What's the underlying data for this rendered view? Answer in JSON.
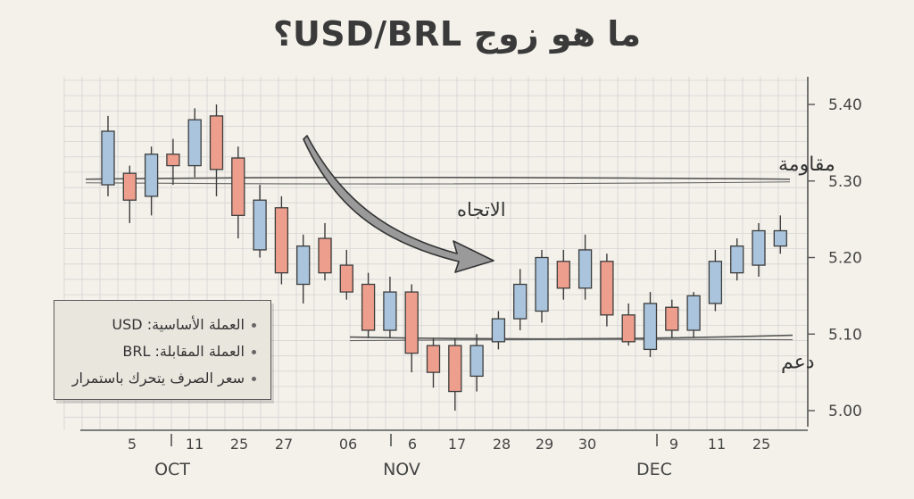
{
  "title": "ما هو زوج USD/BRL؟",
  "legend": {
    "items": [
      "العملة الأساسية: USD",
      "العملة المقابلة: BRL",
      "سعر الصرف يتحرك باستمرار"
    ]
  },
  "colors": {
    "up": "#a9c4dc",
    "down": "#ee9e8c",
    "grid": "#d4d4d4",
    "ink": "#444444",
    "background": "#f3f1ea"
  },
  "chart_data": {
    "type": "candlestick",
    "y_ticks": [
      "5.00",
      "5.10",
      "5.20",
      "5.30",
      "5.40"
    ],
    "ylim": [
      4.98,
      5.45
    ],
    "x_tick_labels": [
      "5",
      "11",
      "25",
      "27",
      "06",
      "6",
      "17",
      "28",
      "29",
      "30",
      "9",
      "11",
      "25"
    ],
    "month_labels": [
      "OCT",
      "NOV",
      "DEC"
    ],
    "resistance": {
      "label": "مقاومة",
      "value": 5.3
    },
    "support": {
      "label": "دعم",
      "value": 5.095
    },
    "trend_label": "الاتجاه",
    "candles": [
      {
        "o": 5.295,
        "c": 5.365,
        "h": 5.385,
        "l": 5.28
      },
      {
        "o": 5.31,
        "c": 5.275,
        "h": 5.32,
        "l": 5.245
      },
      {
        "o": 5.28,
        "c": 5.335,
        "h": 5.345,
        "l": 5.255
      },
      {
        "o": 5.335,
        "c": 5.32,
        "h": 5.355,
        "l": 5.295
      },
      {
        "o": 5.32,
        "c": 5.38,
        "h": 5.395,
        "l": 5.305
      },
      {
        "o": 5.385,
        "c": 5.315,
        "h": 5.4,
        "l": 5.28
      },
      {
        "o": 5.33,
        "c": 5.255,
        "h": 5.345,
        "l": 5.225
      },
      {
        "o": 5.21,
        "c": 5.275,
        "h": 5.295,
        "l": 5.2
      },
      {
        "o": 5.265,
        "c": 5.18,
        "h": 5.28,
        "l": 5.165
      },
      {
        "o": 5.165,
        "c": 5.215,
        "h": 5.23,
        "l": 5.14
      },
      {
        "o": 5.225,
        "c": 5.18,
        "h": 5.245,
        "l": 5.17
      },
      {
        "o": 5.19,
        "c": 5.155,
        "h": 5.21,
        "l": 5.145
      },
      {
        "o": 5.165,
        "c": 5.105,
        "h": 5.18,
        "l": 5.095
      },
      {
        "o": 5.105,
        "c": 5.155,
        "h": 5.175,
        "l": 5.095
      },
      {
        "o": 5.155,
        "c": 5.075,
        "h": 5.165,
        "l": 5.05
      },
      {
        "o": 5.085,
        "c": 5.05,
        "h": 5.095,
        "l": 5.03
      },
      {
        "o": 5.085,
        "c": 5.025,
        "h": 5.095,
        "l": 5.0
      },
      {
        "o": 5.045,
        "c": 5.085,
        "h": 5.1,
        "l": 5.025
      },
      {
        "o": 5.09,
        "c": 5.12,
        "h": 5.13,
        "l": 5.08
      },
      {
        "o": 5.12,
        "c": 5.165,
        "h": 5.185,
        "l": 5.105
      },
      {
        "o": 5.13,
        "c": 5.2,
        "h": 5.21,
        "l": 5.115
      },
      {
        "o": 5.195,
        "c": 5.16,
        "h": 5.21,
        "l": 5.145
      },
      {
        "o": 5.16,
        "c": 5.21,
        "h": 5.23,
        "l": 5.145
      },
      {
        "o": 5.195,
        "c": 5.125,
        "h": 5.205,
        "l": 5.11
      },
      {
        "o": 5.125,
        "c": 5.09,
        "h": 5.14,
        "l": 5.085
      },
      {
        "o": 5.08,
        "c": 5.14,
        "h": 5.155,
        "l": 5.07
      },
      {
        "o": 5.135,
        "c": 5.105,
        "h": 5.145,
        "l": 5.095
      },
      {
        "o": 5.105,
        "c": 5.15,
        "h": 5.155,
        "l": 5.095
      },
      {
        "o": 5.14,
        "c": 5.195,
        "h": 5.21,
        "l": 5.13
      },
      {
        "o": 5.18,
        "c": 5.215,
        "h": 5.225,
        "l": 5.17
      },
      {
        "o": 5.19,
        "c": 5.235,
        "h": 5.245,
        "l": 5.175
      },
      {
        "o": 5.215,
        "c": 5.235,
        "h": 5.255,
        "l": 5.205
      }
    ]
  }
}
